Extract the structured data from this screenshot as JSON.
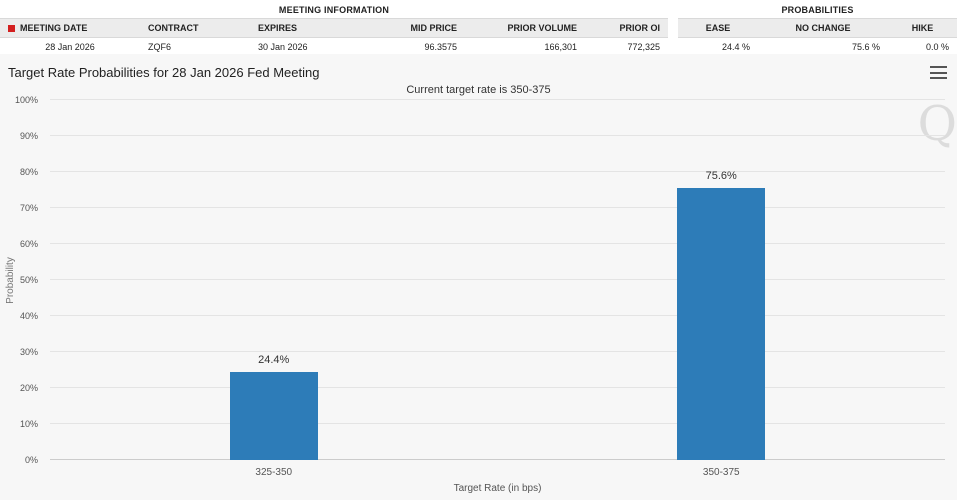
{
  "meeting_information": {
    "title": "MEETING INFORMATION",
    "columns": [
      "MEETING DATE",
      "CONTRACT",
      "EXPIRES",
      "MID PRICE",
      "PRIOR VOLUME",
      "PRIOR OI"
    ],
    "values": [
      "28 Jan 2026",
      "ZQF6",
      "30 Jan 2026",
      "96.3575",
      "166,301",
      "772,325"
    ]
  },
  "probabilities": {
    "title": "PROBABILITIES",
    "columns": [
      "EASE",
      "NO CHANGE",
      "HIKE"
    ],
    "values": [
      "24.4 %",
      "75.6 %",
      "0.0 %"
    ]
  },
  "chart": {
    "title": "Target Rate Probabilities for 28 Jan 2026 Fed Meeting",
    "subtitle": "Current target rate is 350-375",
    "watermark": "Q"
  },
  "chart_data": {
    "type": "bar",
    "categories": [
      "325-350",
      "350-375"
    ],
    "values": [
      24.4,
      75.6
    ],
    "value_labels": [
      "24.4%",
      "75.6%"
    ],
    "title": "Target Rate Probabilities for 28 Jan 2026 Fed Meeting",
    "subtitle": "Current target rate is 350-375",
    "xlabel": "Target Rate (in bps)",
    "ylabel": "Probability",
    "ylim": [
      0,
      100
    ],
    "ytick_step": 10,
    "ytick_suffix": "%",
    "grid": true,
    "legend": false,
    "bar_color": "#2d7cb8"
  }
}
